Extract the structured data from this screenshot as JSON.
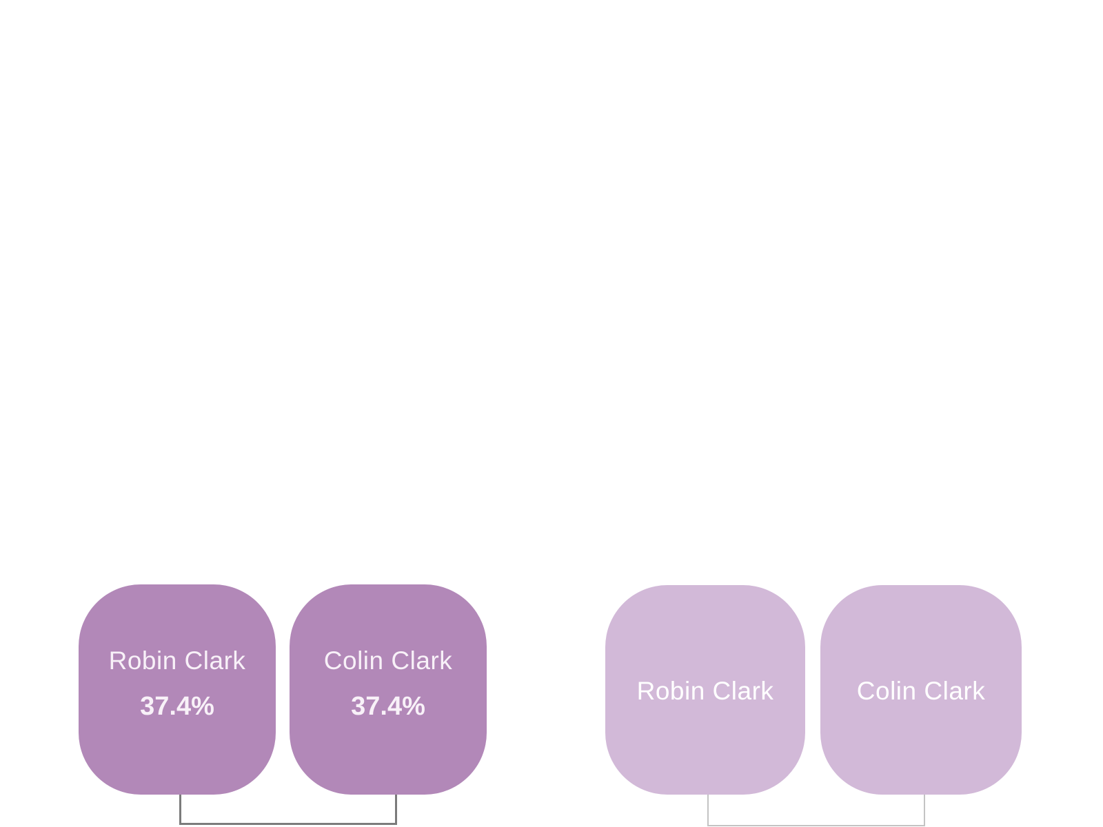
{
  "page": {
    "background_color": "#ffffff"
  },
  "groups": [
    {
      "id": "left-pair",
      "node_fill": "#b288b8",
      "text_color": "#f8f1f8",
      "connector_color": "#7b7b7b",
      "nodes": [
        {
          "name": "Robin Clark",
          "percentage": "37.4%"
        },
        {
          "name": "Colin Clark",
          "percentage": "37.4%"
        }
      ]
    },
    {
      "id": "right-pair",
      "node_fill": "#d2b9d8",
      "text_color": "#ffffff",
      "connector_color": "#c3c3c3",
      "nodes": [
        {
          "name": "Robin Clark"
        },
        {
          "name": "Colin Clark"
        }
      ]
    }
  ]
}
